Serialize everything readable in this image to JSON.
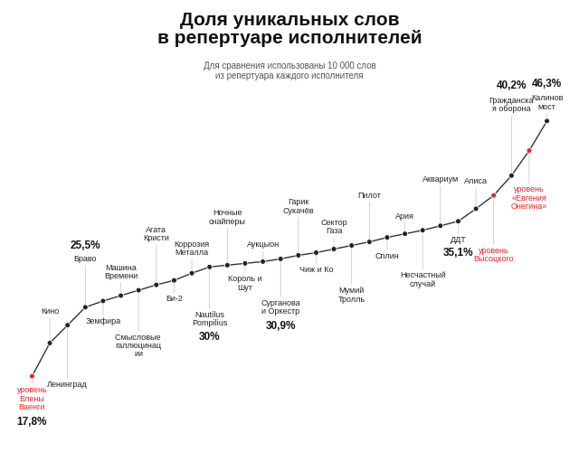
{
  "chart_data": {
    "type": "line",
    "title": "Доля уникальных слов\nв репертуаре исполнителей",
    "subtitle": "Для сравнения использованы 10 000 слов\nиз репертуара каждого исполнителя",
    "categories": [
      "уровень Елены Ваенги",
      "Кино",
      "Ленинград",
      "Браво",
      "Земфира",
      "Машина Времени",
      "Смысловые галлюцинации",
      "Агата Кристи",
      "Би-2",
      "Коррозия Металла",
      "Nautilus Pompilius",
      "Ночные снайперы",
      "Король и Шут",
      "Аукцыон",
      "Сурганова и Оркестр",
      "Гарик Сукачёв",
      "Чиж и Ко",
      "Сектор Газа",
      "Мумий Тролль",
      "Пилот",
      "Сплин",
      "Ария",
      "Несчастный случай",
      "Аквариум",
      "ДДТ",
      "Алиса",
      "уровень Высоцкого",
      "Гражданская оборона",
      "уровень «Евгения Онегина»",
      "Калинов мост"
    ],
    "values": [
      17.8,
      21.5,
      23.5,
      25.5,
      26.2,
      26.8,
      27.4,
      28.0,
      28.5,
      29.3,
      30.0,
      30.2,
      30.4,
      30.6,
      30.9,
      31.3,
      31.6,
      32.0,
      32.4,
      32.8,
      33.3,
      33.7,
      34.1,
      34.6,
      35.1,
      36.5,
      38.0,
      40.2,
      43.0,
      46.3
    ],
    "value_labels": [
      "17,8%",
      null,
      null,
      "25,5%",
      null,
      null,
      null,
      null,
      null,
      null,
      "30%",
      null,
      null,
      null,
      "30,9%",
      null,
      null,
      null,
      null,
      null,
      null,
      null,
      null,
      null,
      "35,1%",
      null,
      null,
      "40,2%",
      null,
      "46,3%"
    ],
    "data_labels": true,
    "color": "#333333",
    "colors": [
      "#e0252b",
      "#222222",
      "#222222",
      "#222222",
      "#222222",
      "#222222",
      "#222222",
      "#222222",
      "#222222",
      "#222222",
      "#222222",
      "#222222",
      "#222222",
      "#222222",
      "#222222",
      "#222222",
      "#222222",
      "#222222",
      "#222222",
      "#222222",
      "#222222",
      "#222222",
      "#222222",
      "#222222",
      "#222222",
      "#222222",
      "#e0252b",
      "#222222",
      "#e0252b",
      "#222222"
    ],
    "marker": "o",
    "grid": false,
    "tick_labels": false
  }
}
